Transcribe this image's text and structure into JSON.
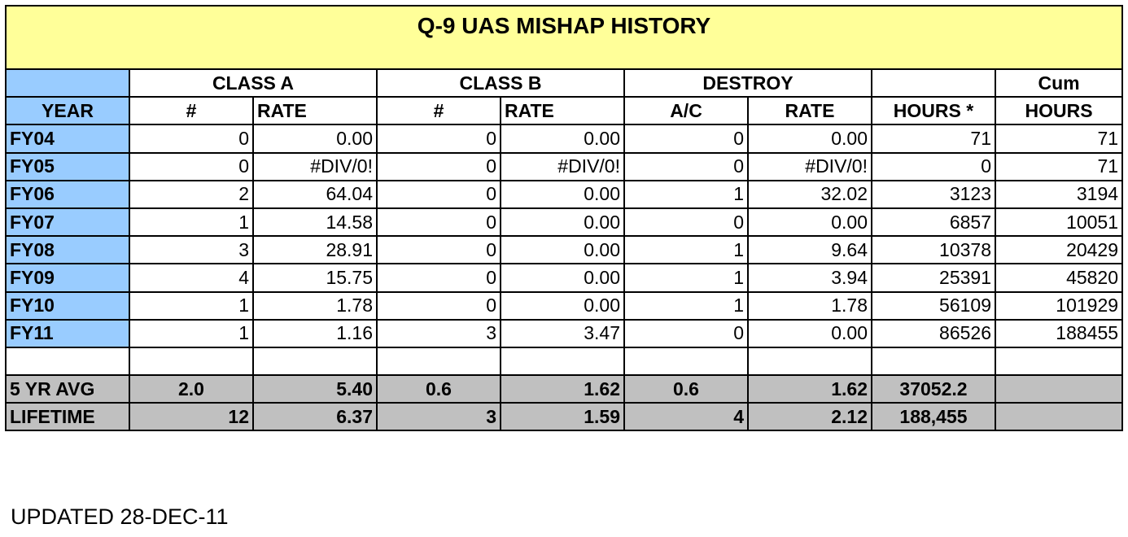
{
  "title": "Q-9 UAS MISHAP  HISTORY",
  "header_top": {
    "class_a": "CLASS A",
    "class_b": "CLASS B",
    "destroy": "DESTROY",
    "cum": "Cum"
  },
  "header_sub": {
    "year": "YEAR",
    "a_count": "#",
    "a_rate": "RATE",
    "b_count": "#",
    "b_rate": "RATE",
    "destroy_ac": "A/C",
    "destroy_rate": "RATE",
    "hours": "HOURS *",
    "cum_hours": "HOURS"
  },
  "rows": [
    [
      "FY04",
      "0",
      "0.00",
      "0",
      "0.00",
      "0",
      "0.00",
      "71",
      "71"
    ],
    [
      "FY05",
      "0",
      "#DIV/0!",
      "0",
      "#DIV/0!",
      "0",
      "#DIV/0!",
      "0",
      "71"
    ],
    [
      "FY06",
      "2",
      "64.04",
      "0",
      "0.00",
      "1",
      "32.02",
      "3123",
      "3194"
    ],
    [
      "FY07",
      "1",
      "14.58",
      "0",
      "0.00",
      "0",
      "0.00",
      "6857",
      "10051"
    ],
    [
      "FY08",
      "3",
      "28.91",
      "0",
      "0.00",
      "1",
      "9.64",
      "10378",
      "20429"
    ],
    [
      "FY09",
      "4",
      "15.75",
      "0",
      "0.00",
      "1",
      "3.94",
      "25391",
      "45820"
    ],
    [
      "FY10",
      "1",
      "1.78",
      "0",
      "0.00",
      "1",
      "1.78",
      "56109",
      "101929"
    ],
    [
      "FY11",
      "1",
      "1.16",
      "3",
      "3.47",
      "0",
      "0.00",
      "86526",
      "188455"
    ]
  ],
  "avg": [
    "5 YR AVG",
    "2.0",
    "5.40",
    "0.6",
    "1.62",
    "0.6",
    "1.62",
    "37052.2",
    ""
  ],
  "lifetime": [
    "LIFETIME",
    "12",
    "6.37",
    "3",
    "1.59",
    "4",
    "2.12",
    "188,455",
    ""
  ],
  "updated": "UPDATED 28-DEC-11",
  "colors": {
    "title_bg": "#ffff99",
    "year_bg": "#99ccff",
    "summary_bg": "#c0c0c0"
  }
}
